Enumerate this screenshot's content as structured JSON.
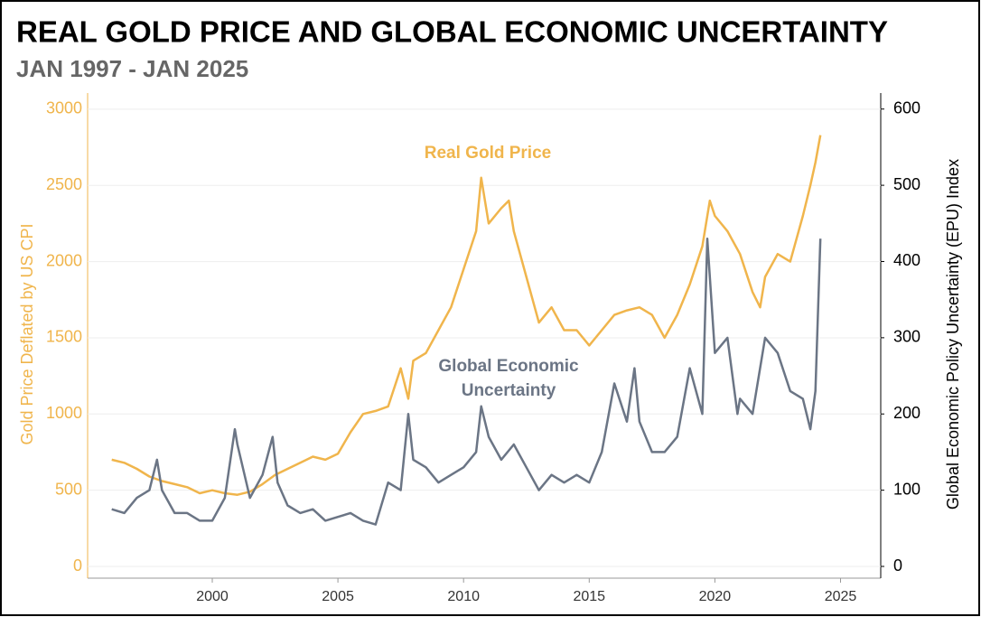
{
  "chart_data": {
    "type": "line",
    "title": "REAL GOLD PRICE AND GLOBAL ECONOMIC UNCERTAINTY",
    "subtitle": "JAN 1997 - JAN 2025",
    "y_label": "Gold Price Deflated by US CPI",
    "y2_label": "Global Economic Policy Uncertainty (EPU) Index",
    "xlim": [
      1995.04,
      2026.6
    ],
    "xticks": [
      2000,
      2005,
      2010,
      2015,
      2020,
      2025
    ],
    "ylim": [
      -77,
      3106
    ],
    "yticks": [
      0,
      500,
      1000,
      1500,
      2000,
      2500,
      3000
    ],
    "y2lim": [
      -15.4,
      621
    ],
    "y2ticks": [
      0,
      100,
      200,
      300,
      400,
      500,
      600
    ],
    "grid": true,
    "series": [
      {
        "name": "Real Gold Price",
        "color": "#f0b54c",
        "axis": "y",
        "x": [
          1996.0,
          1996.5,
          1997.0,
          1997.5,
          1998.0,
          1998.5,
          1999.0,
          1999.5,
          2000.0,
          2000.5,
          2001.0,
          2001.5,
          2002.0,
          2002.5,
          2003.0,
          2003.5,
          2004.0,
          2004.5,
          2005.0,
          2005.5,
          2006.0,
          2006.5,
          2007.0,
          2007.5,
          2007.8,
          2008.0,
          2008.5,
          2009.0,
          2009.5,
          2010.0,
          2010.5,
          2010.7,
          2011.0,
          2011.5,
          2011.8,
          2012.0,
          2012.5,
          2013.0,
          2013.5,
          2014.0,
          2014.5,
          2015.0,
          2015.5,
          2016.0,
          2016.5,
          2017.0,
          2017.5,
          2018.0,
          2018.5,
          2019.0,
          2019.5,
          2019.8,
          2020.0,
          2020.5,
          2021.0,
          2021.5,
          2021.8,
          2022.0,
          2022.5,
          2023.0,
          2023.5,
          2023.8,
          2024.0,
          2024.2
        ],
        "values": [
          700,
          680,
          640,
          590,
          560,
          540,
          520,
          480,
          500,
          480,
          470,
          490,
          540,
          600,
          640,
          680,
          720,
          700,
          740,
          880,
          1000,
          1020,
          1050,
          1300,
          1100,
          1350,
          1400,
          1550,
          1700,
          1950,
          2200,
          2550,
          2250,
          2350,
          2400,
          2200,
          1900,
          1600,
          1700,
          1550,
          1550,
          1450,
          1550,
          1650,
          1680,
          1700,
          1650,
          1500,
          1650,
          1850,
          2100,
          2400,
          2300,
          2200,
          2050,
          1800,
          1700,
          1900,
          2050,
          2000,
          2300,
          2500,
          2650,
          2830
        ]
      },
      {
        "name": "Global Economic Uncertainty",
        "label_lines": [
          "Global Economic",
          "Uncertainty"
        ],
        "color": "#6b7585",
        "axis": "y2",
        "x": [
          1996.0,
          1996.5,
          1997.0,
          1997.5,
          1997.8,
          1998.0,
          1998.5,
          1999.0,
          1999.5,
          2000.0,
          2000.5,
          2000.9,
          2001.0,
          2001.5,
          2002.0,
          2002.4,
          2002.6,
          2003.0,
          2003.5,
          2004.0,
          2004.5,
          2005.0,
          2005.5,
          2006.0,
          2006.5,
          2007.0,
          2007.5,
          2007.8,
          2008.0,
          2008.5,
          2009.0,
          2009.5,
          2010.0,
          2010.5,
          2010.7,
          2011.0,
          2011.5,
          2012.0,
          2012.5,
          2013.0,
          2013.5,
          2014.0,
          2014.5,
          2015.0,
          2015.5,
          2016.0,
          2016.5,
          2016.8,
          2017.0,
          2017.5,
          2018.0,
          2018.5,
          2019.0,
          2019.5,
          2019.7,
          2020.0,
          2020.5,
          2020.9,
          2021.0,
          2021.5,
          2022.0,
          2022.5,
          2023.0,
          2023.5,
          2023.8,
          2024.0,
          2024.2
        ],
        "values": [
          75,
          70,
          90,
          100,
          140,
          100,
          70,
          70,
          60,
          60,
          90,
          180,
          160,
          90,
          120,
          170,
          110,
          80,
          70,
          75,
          60,
          65,
          70,
          60,
          55,
          110,
          100,
          200,
          140,
          130,
          110,
          120,
          130,
          150,
          210,
          170,
          140,
          160,
          130,
          100,
          120,
          110,
          120,
          110,
          150,
          240,
          190,
          260,
          190,
          150,
          150,
          170,
          260,
          200,
          430,
          280,
          300,
          200,
          220,
          200,
          300,
          280,
          230,
          220,
          180,
          230,
          430
        ]
      }
    ]
  }
}
